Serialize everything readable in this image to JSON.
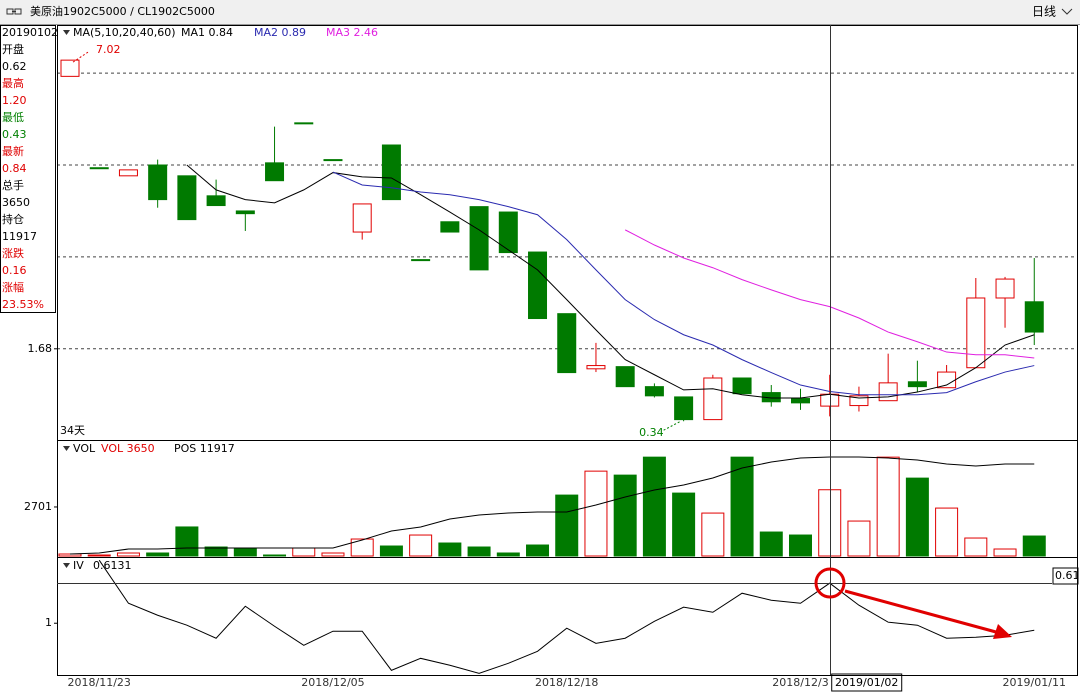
{
  "header": {
    "symbol": "美原油1902C5000  /  CL1902C5000",
    "period": "日线"
  },
  "info_panel": {
    "date": "20190102",
    "items": [
      {
        "label": "开盘",
        "label_color": "#000000",
        "value": "0.62",
        "value_color": "#000000"
      },
      {
        "label": "最高",
        "label_color": "#e00000",
        "value": "1.20",
        "value_color": "#e00000"
      },
      {
        "label": "最低",
        "label_color": "#008000",
        "value": "0.43",
        "value_color": "#008000"
      },
      {
        "label": "最新",
        "label_color": "#e00000",
        "value": "0.84",
        "value_color": "#e00000"
      },
      {
        "label": "总手",
        "label_color": "#000000",
        "value": "3650",
        "value_color": "#000000"
      },
      {
        "label": "持仓",
        "label_color": "#000000",
        "value": "11917",
        "value_color": "#000000"
      },
      {
        "label": "涨跌",
        "label_color": "#e00000",
        "value": "0.16",
        "value_color": "#e00000"
      },
      {
        "label": "涨幅",
        "label_color": "#e00000",
        "value": "23.53%",
        "value_color": "#e00000"
      }
    ]
  },
  "chart_data": [
    {
      "type": "candlestick",
      "title": "MA(5,10,20,40,60)",
      "period_label": "34天",
      "up_color": "#e00000",
      "down_color": "#007a00",
      "open": [
        6.72,
        5.03,
        4.88,
        5.08,
        4.88,
        4.51,
        4.23,
        5.12,
        5.86,
        5.18,
        3.84,
        5.45,
        3.33,
        4.03,
        4.31,
        4.21,
        3.47,
        2.33,
        1.31,
        1.35,
        0.98,
        0.79,
        0.37,
        1.14,
        0.87,
        0.76,
        0.62,
        0.63,
        0.72,
        1.07,
        0.96,
        1.33,
        2.62,
        2.55
      ],
      "high": [
        7.02,
        5.03,
        4.99,
        5.18,
        4.88,
        4.81,
        4.23,
        5.79,
        5.86,
        5.18,
        4.36,
        5.45,
        3.33,
        4.03,
        4.31,
        4.21,
        3.47,
        2.33,
        1.79,
        1.35,
        1.04,
        0.79,
        1.2,
        1.14,
        1.01,
        0.94,
        1.2,
        0.98,
        1.59,
        1.46,
        1.38,
        2.99,
        3.01,
        3.36
      ],
      "low": [
        6.72,
        5.03,
        4.88,
        4.29,
        4.07,
        4.33,
        3.86,
        4.79,
        5.86,
        5.18,
        3.7,
        4.44,
        3.33,
        3.84,
        3.14,
        3.46,
        2.24,
        1.24,
        1.25,
        0.98,
        0.78,
        0.34,
        0.37,
        0.85,
        0.61,
        0.55,
        0.43,
        0.52,
        0.72,
        0.88,
        0.96,
        1.33,
        2.07,
        1.75
      ],
      "close": [
        7.02,
        5.03,
        4.99,
        4.44,
        4.07,
        4.33,
        4.18,
        4.79,
        5.86,
        5.18,
        4.36,
        4.44,
        3.33,
        3.84,
        3.14,
        3.46,
        2.24,
        1.24,
        1.37,
        0.98,
        0.81,
        0.37,
        1.14,
        0.85,
        0.7,
        0.68,
        0.84,
        0.81,
        1.05,
        0.98,
        1.25,
        2.62,
        2.97,
        1.99
      ],
      "series": [
        {
          "name": "MA1",
          "color": "#000000",
          "values": [
            null,
            null,
            null,
            null,
            5.08,
            4.62,
            4.44,
            4.38,
            4.62,
            4.94,
            4.86,
            4.84,
            4.53,
            4.21,
            3.88,
            3.51,
            3.14,
            2.59,
            2.03,
            1.48,
            1.2,
            0.92,
            0.94,
            0.83,
            0.77,
            0.77,
            0.84,
            0.77,
            0.79,
            0.88,
            1.01,
            1.33,
            1.75,
            1.94
          ]
        },
        {
          "name": "MA2",
          "color": "#2b2bb0",
          "values": [
            null,
            null,
            null,
            null,
            null,
            null,
            null,
            null,
            null,
            4.95,
            4.71,
            4.66,
            4.58,
            4.53,
            4.44,
            4.31,
            4.16,
            3.7,
            3.14,
            2.59,
            2.22,
            1.94,
            1.75,
            1.48,
            1.24,
            1.01,
            0.89,
            0.83,
            0.83,
            0.83,
            0.87,
            1.07,
            1.25,
            1.37
          ]
        },
        {
          "name": "MA3",
          "color": "#e020e0",
          "values": [
            null,
            null,
            null,
            null,
            null,
            null,
            null,
            null,
            null,
            null,
            null,
            null,
            null,
            null,
            null,
            null,
            null,
            null,
            null,
            3.88,
            3.6,
            3.36,
            3.18,
            2.96,
            2.77,
            2.59,
            2.46,
            2.25,
            1.99,
            1.81,
            1.62,
            1.57,
            1.57,
            1.51
          ]
        }
      ],
      "ylim": [
        0.03,
        7.67
      ],
      "yticks": [
        1.68
      ],
      "grid_lines": [
        1.68,
        3.38,
        5.08,
        6.78
      ]
    },
    {
      "type": "bar",
      "title": "VOL",
      "series": [
        {
          "name": "VOL",
          "color": "#e00000",
          "values": [
            110,
            55,
            165,
            165,
            1600,
            495,
            440,
            55,
            440,
            165,
            935,
            550,
            1155,
            715,
            495,
            165,
            605,
            3355,
            4675,
            4455,
            5445,
            3465,
            2365,
            5445,
            1320,
            1155,
            3650,
            1925,
            5445,
            4290,
            2640,
            990,
            385,
            1100
          ]
        },
        {
          "name": "POS",
          "color": "#000000",
          "axis": "y2",
          "values": [
            241,
            361,
            843,
            843,
            963,
            963,
            963,
            963,
            963,
            963,
            1926,
            3010,
            3492,
            4455,
            4936,
            5177,
            5298,
            5298,
            6140,
            7104,
            7946,
            8548,
            9391,
            10595,
            11318,
            11799,
            11917,
            11917,
            11799,
            11558,
            11077,
            10836,
            11077,
            11077
          ]
        }
      ],
      "ylim": [
        0,
        6390
      ],
      "yticks": [
        2701
      ],
      "y2lim": [
        0,
        13970
      ]
    },
    {
      "type": "line",
      "title": "IV",
      "cursor_label": "0.61",
      "categories": [
        null,
        "2018/11/23",
        null,
        null,
        null,
        null,
        null,
        null,
        null,
        "2018/12/05",
        null,
        null,
        null,
        null,
        null,
        null,
        null,
        "2018/12/18",
        null,
        null,
        null,
        null,
        null,
        null,
        null,
        "2018/12/3",
        "2019/01/02",
        null,
        null,
        null,
        null,
        null,
        null,
        "2019/01/11"
      ],
      "series": [
        {
          "name": "IV",
          "color": "#000000",
          "values": [
            null,
            0.391,
            0.807,
            0.923,
            1.019,
            1.145,
            0.836,
            1.029,
            1.213,
            1.077,
            1.077,
            1.455,
            1.339,
            1.406,
            1.484,
            1.387,
            1.271,
            1.048,
            1.194,
            1.145,
            0.981,
            0.845,
            0.894,
            0.71,
            0.778,
            0.807,
            0.6131,
            0.826,
            0.99,
            1.019,
            1.145,
            1.135,
            1.116,
            1.068
          ]
        }
      ],
      "ylim": [
        1.5,
        0.37
      ],
      "yticks": [
        1
      ]
    }
  ]
}
